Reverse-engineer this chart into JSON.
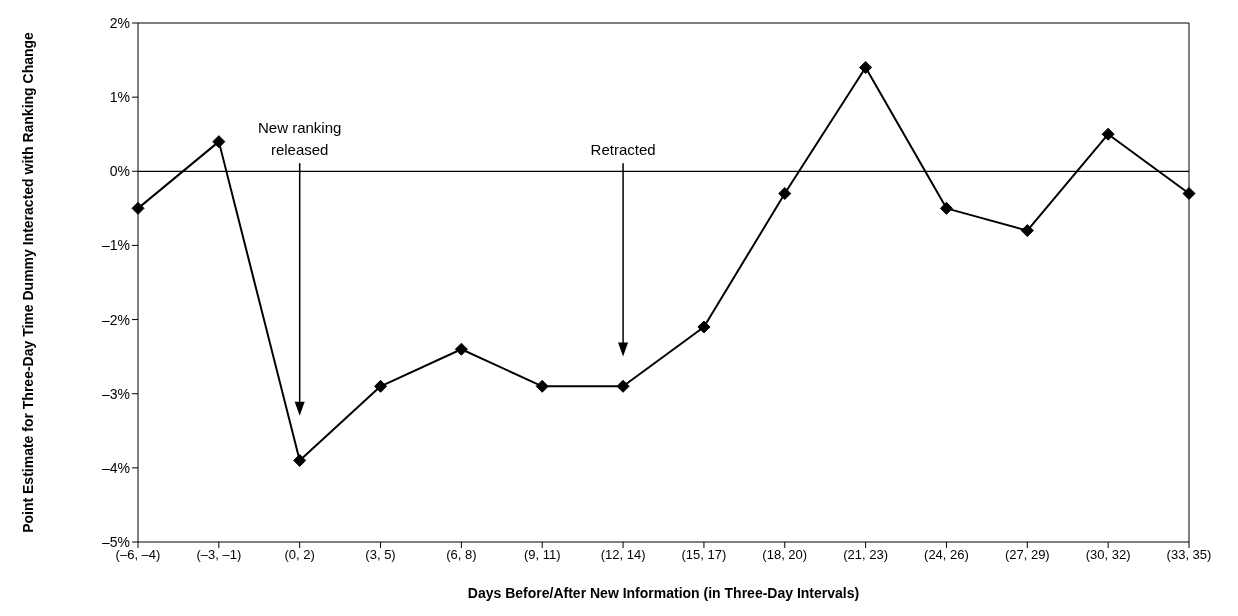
{
  "chart_data": {
    "type": "line",
    "xlabel": "Days Before/After New Information (in Three-Day Intervals)",
    "ylabel": "Point Estimate for Three-Day Time Dummy Interacted with Ranking Change",
    "categories": [
      "(–6, –4)",
      "(–3, –1)",
      "(0, 2)",
      "(3, 5)",
      "(6, 8)",
      "(9, 11)",
      "(12, 14)",
      "(15, 17)",
      "(18, 20)",
      "(21, 23)",
      "(24, 26)",
      "(27, 29)",
      "(30, 32)",
      "(33, 35)"
    ],
    "series": [
      {
        "color": "#000000",
        "values": [
          -0.5,
          0.4,
          -3.9,
          -2.9,
          -2.4,
          -2.9,
          -2.9,
          -2.1,
          -0.3,
          1.4,
          -0.5,
          -0.8,
          0.5,
          -0.3
        ]
      }
    ],
    "ylim": [
      -5,
      2
    ],
    "yticks": [
      {
        "value": -5,
        "label": "–5%"
      },
      {
        "value": -4,
        "label": "–4%"
      },
      {
        "value": -3,
        "label": "–3%"
      },
      {
        "value": -2,
        "label": "–2%"
      },
      {
        "value": -1,
        "label": "–1%"
      },
      {
        "value": 0,
        "label": "0%"
      },
      {
        "value": 1,
        "label": "1%"
      },
      {
        "value": 2,
        "label": "2%"
      }
    ],
    "ref_lines": [
      {
        "axis": "y",
        "value": 0,
        "color": "#000000"
      }
    ],
    "annotations": [
      "New ranking released",
      "Retracted"
    ],
    "grid": false,
    "legend": false,
    "marker": "diamond",
    "line_style": "solid"
  }
}
